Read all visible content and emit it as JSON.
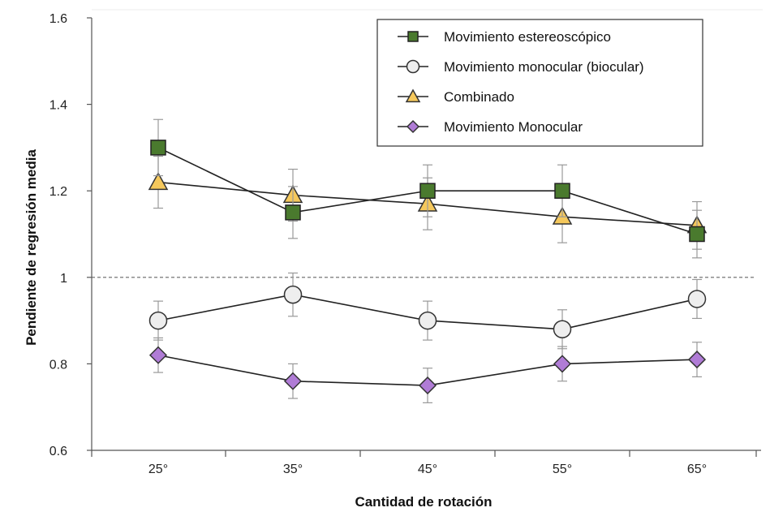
{
  "chart_data": {
    "type": "line",
    "title": "",
    "xlabel": "Cantidad de rotación",
    "ylabel": "Pendiente de regresión media",
    "categories": [
      "25°",
      "35°",
      "45°",
      "55°",
      "65°"
    ],
    "ylim": [
      0.6,
      1.6
    ],
    "yticks": [
      "0.6",
      "0.8",
      "1",
      "1.2",
      "1.4",
      "1.6"
    ],
    "yticks_values": [
      0.6,
      0.8,
      1.0,
      1.2,
      1.4,
      1.6
    ],
    "reference_line": 1.0,
    "grid": false,
    "legend_position": "top-right",
    "series": [
      {
        "name": "Movimiento estereoscópico",
        "marker": "square",
        "color": "#4a7a2e",
        "values": [
          1.3,
          1.15,
          1.2,
          1.2,
          1.1
        ],
        "errors": [
          0.065,
          0.06,
          0.06,
          0.06,
          0.055
        ]
      },
      {
        "name": "Movimiento monocular (biocular)",
        "marker": "circle",
        "color": "#eeeeee",
        "values": [
          0.9,
          0.96,
          0.9,
          0.88,
          0.95
        ],
        "errors": [
          0.045,
          0.05,
          0.045,
          0.045,
          0.045
        ]
      },
      {
        "name": "Combinado",
        "marker": "triangle",
        "color": "#f5c85c",
        "values": [
          1.22,
          1.19,
          1.17,
          1.14,
          1.12
        ],
        "errors": [
          0.06,
          0.06,
          0.06,
          0.06,
          0.055
        ]
      },
      {
        "name": "Movimiento Monocular",
        "marker": "diamond",
        "color": "#b07cd6",
        "values": [
          0.82,
          0.76,
          0.75,
          0.8,
          0.81
        ],
        "errors": [
          0.04,
          0.04,
          0.04,
          0.04,
          0.04
        ]
      }
    ]
  }
}
